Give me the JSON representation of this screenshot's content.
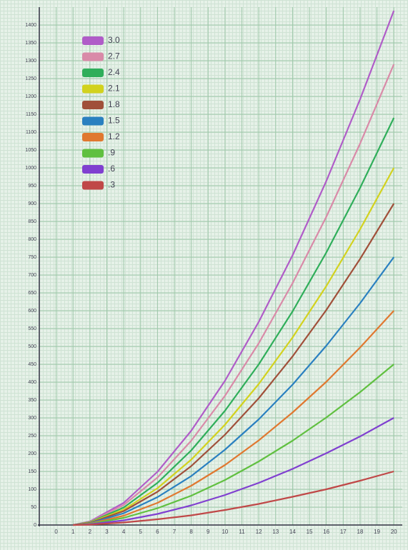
{
  "chart_data": {
    "type": "line",
    "x": [
      1,
      2,
      4,
      6,
      8,
      10,
      12,
      14,
      16,
      18,
      20
    ],
    "xlim": [
      -1,
      20.5
    ],
    "xticks": [
      0,
      1,
      2,
      3,
      4,
      5,
      6,
      7,
      8,
      9,
      10,
      11,
      12,
      13,
      14,
      15,
      16,
      17,
      18,
      19,
      20
    ],
    "ylim": [
      0,
      1450
    ],
    "yticks": [
      0,
      50,
      100,
      150,
      200,
      250,
      300,
      350,
      400,
      450,
      500,
      550,
      600,
      650,
      700,
      750,
      800,
      850,
      900,
      950,
      1000,
      1050,
      1100,
      1150,
      1200,
      1250,
      1300,
      1350,
      1400
    ],
    "grid": true,
    "legend": "upper-left",
    "series": [
      {
        "name": "3.0",
        "color": "#b05cc8",
        "values": [
          0,
          10,
          62,
          149,
          264,
          404,
          569,
          755,
          963,
          1192,
          1440
        ]
      },
      {
        "name": "2.7",
        "color": "#d98aa8",
        "values": [
          0,
          9,
          56,
          133,
          236,
          362,
          509,
          677,
          863,
          1068,
          1290
        ]
      },
      {
        "name": "2.4",
        "color": "#2fae5a",
        "values": [
          0,
          8,
          49,
          118,
          209,
          320,
          450,
          598,
          763,
          944,
          1140
        ]
      },
      {
        "name": "2.1",
        "color": "#d2d21e",
        "values": [
          0,
          7,
          43,
          103,
          183,
          281,
          395,
          525,
          669,
          828,
          1000
        ]
      },
      {
        "name": "1.8",
        "color": "#a0503a",
        "values": [
          0,
          6,
          39,
          93,
          165,
          253,
          355,
          472,
          602,
          745,
          900
        ]
      },
      {
        "name": "1.5",
        "color": "#2a80c0",
        "values": [
          0,
          5,
          33,
          78,
          137,
          211,
          296,
          393,
          502,
          621,
          750
        ]
      },
      {
        "name": "1.2",
        "color": "#e07830",
        "values": [
          0,
          4,
          26,
          62,
          110,
          168,
          237,
          315,
          401,
          497,
          600
        ]
      },
      {
        "name": ".9",
        "color": "#60c040",
        "values": [
          0,
          3,
          20,
          47,
          82,
          126,
          178,
          236,
          301,
          372,
          450
        ]
      },
      {
        "name": ".6",
        "color": "#8040d0",
        "values": [
          0,
          2,
          13,
          31,
          55,
          84,
          118,
          157,
          201,
          248,
          300
        ]
      },
      {
        "name": ".3",
        "color": "#c04848",
        "values": [
          0,
          1,
          7,
          16,
          27,
          42,
          59,
          79,
          100,
          124,
          150
        ]
      }
    ]
  }
}
